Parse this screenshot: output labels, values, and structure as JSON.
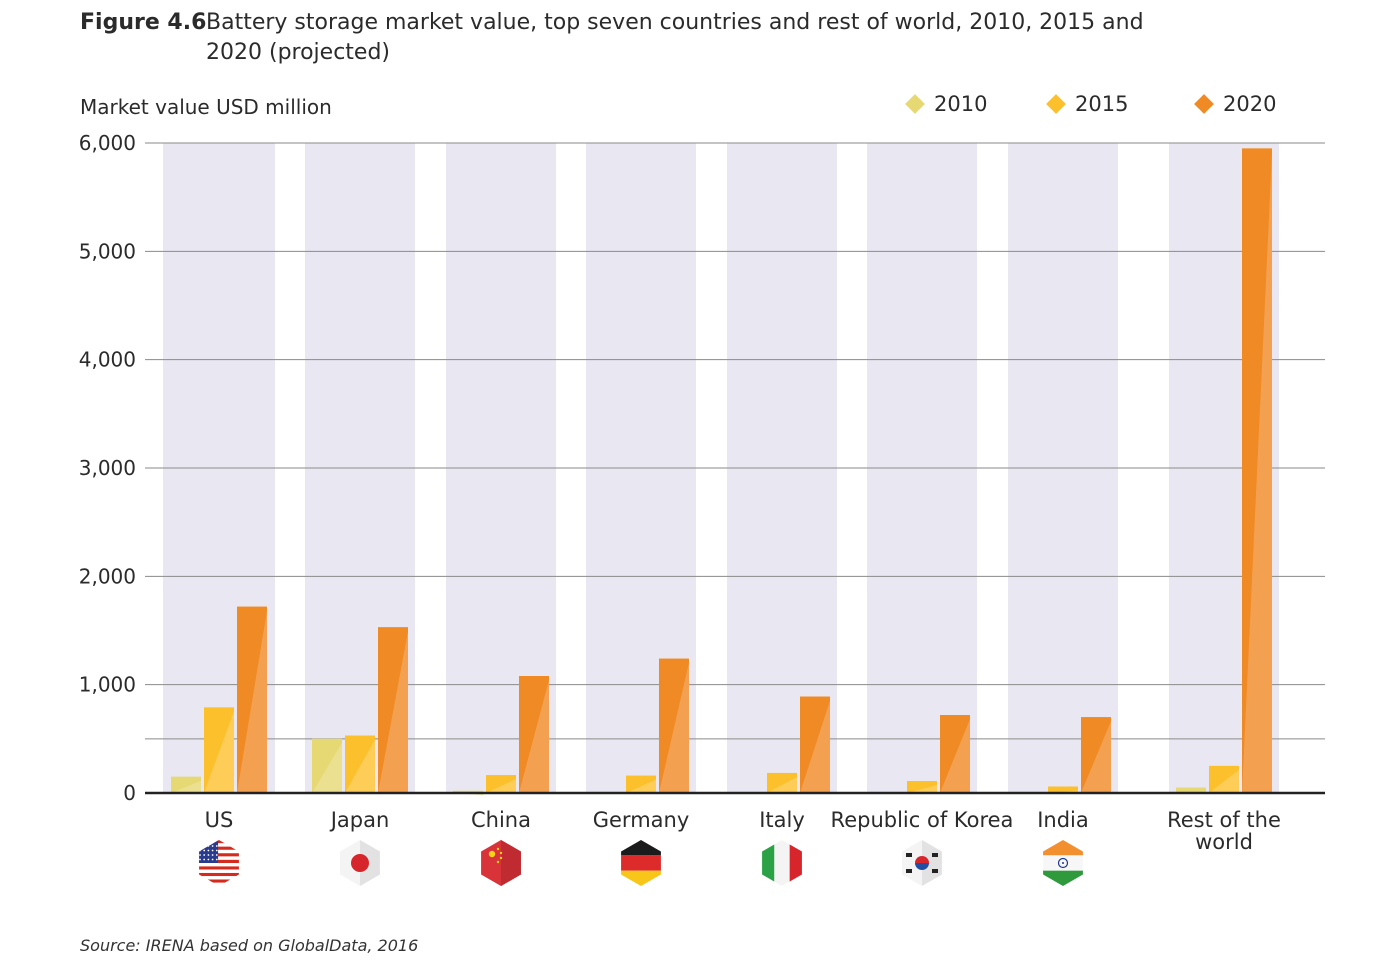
{
  "figure": {
    "label": "Figure 4.6",
    "title": "Battery storage market value, top seven countries and rest of world, 2010, 2015 and 2020 (projected)"
  },
  "source": "Source: IRENA based on GlobalData, 2016",
  "colors": {
    "band": "#e9e8f2",
    "gridline": "#8a8a8a",
    "axis": "#222222"
  },
  "chart_data": {
    "type": "bar",
    "ylabel": "Market value USD million",
    "ylim": [
      0,
      6000
    ],
    "yticks": [
      "0",
      "1,000",
      "2,000",
      "3,000",
      "4,000",
      "5,000",
      "6,000"
    ],
    "grid": true,
    "legend_position": "top-right",
    "categories": [
      "US",
      "Japan",
      "China",
      "Germany",
      "Italy",
      "Republic of Korea",
      "India",
      "Rest of the world"
    ],
    "category_icons": [
      "us-flag-icon",
      "japan-flag-icon",
      "china-flag-icon",
      "germany-flag-icon",
      "italy-flag-icon",
      "korea-flag-icon",
      "india-flag-icon",
      ""
    ],
    "series": [
      {
        "name": "2010",
        "color": "#e6d873",
        "values": [
          150,
          500,
          20,
          0,
          0,
          0,
          0,
          50
        ]
      },
      {
        "name": "2015",
        "color": "#fcc02d",
        "values": [
          790,
          530,
          165,
          160,
          185,
          110,
          60,
          250
        ]
      },
      {
        "name": "2020",
        "color": "#f08a24",
        "values": [
          1720,
          1530,
          1080,
          1240,
          890,
          720,
          700,
          5950
        ]
      }
    ]
  }
}
